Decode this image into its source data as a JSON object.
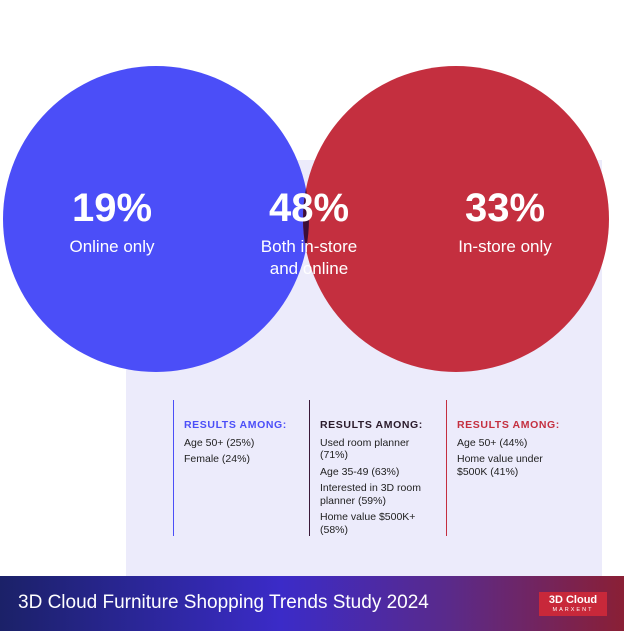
{
  "colors": {
    "online": "#4b4ef8",
    "instore": "#c42f3f",
    "overlap": "#3c0e38",
    "panel": "#ecebfb"
  },
  "segments": {
    "online": {
      "percent": "19%",
      "label": "Online only"
    },
    "both": {
      "percent": "48%",
      "label_line1": "Both in-store",
      "label_line2": "and online"
    },
    "instore": {
      "percent": "33%",
      "label": "In-store only"
    }
  },
  "results": {
    "online": {
      "heading": "RESULTS AMONG:",
      "items": [
        "Age 50+ (25%)",
        "Female (24%)"
      ]
    },
    "both": {
      "heading": "RESULTS AMONG:",
      "items": [
        "Used room planner (71%)",
        "Age 35-49 (63%)",
        "Interested in 3D room planner (59%)",
        "Home value $500K+ (58%)"
      ]
    },
    "instore": {
      "heading": "RESULTS AMONG:",
      "items": [
        "Age 50+ (44%)",
        "Home value under $500K (41%)"
      ]
    }
  },
  "footer": {
    "title": "3D Cloud Furniture Shopping Trends Study 2024",
    "logo_top": "3D Cloud",
    "logo_bottom": "MARXENT"
  }
}
